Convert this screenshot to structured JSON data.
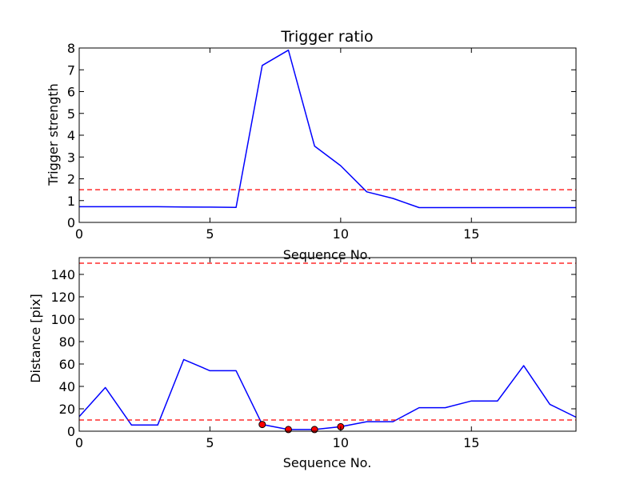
{
  "chart_data": [
    {
      "type": "line",
      "title": "Trigger ratio",
      "xlabel": "Sequence No.",
      "ylabel": "Trigger strength",
      "xlim": [
        0,
        19
      ],
      "ylim": [
        0,
        8
      ],
      "xticks": [
        0,
        5,
        10,
        15
      ],
      "yticks": [
        0,
        1,
        2,
        3,
        4,
        5,
        6,
        7,
        8
      ],
      "grid": false,
      "series": [
        {
          "color": "#0000ff",
          "style": "solid",
          "x": [
            0,
            1,
            2,
            3,
            4,
            5,
            6,
            7,
            8,
            9,
            10,
            11,
            12,
            13,
            14,
            15,
            16,
            17,
            18,
            19
          ],
          "y": [
            0.72,
            0.72,
            0.72,
            0.72,
            0.71,
            0.7,
            0.69,
            7.2,
            7.9,
            3.5,
            2.6,
            1.4,
            1.1,
            0.68,
            0.68,
            0.68,
            0.68,
            0.68,
            0.68,
            0.68
          ]
        }
      ],
      "hlines": [
        {
          "y": 1.5,
          "color": "#ff0000",
          "style": "dashed"
        }
      ],
      "markers": []
    },
    {
      "type": "line",
      "title": "",
      "xlabel": "Sequence No.",
      "ylabel": "Distance [pix]",
      "xlim": [
        0,
        19
      ],
      "ylim": [
        0,
        155
      ],
      "xticks": [
        0,
        5,
        10,
        15
      ],
      "yticks": [
        0,
        20,
        40,
        60,
        80,
        100,
        120,
        140
      ],
      "grid": false,
      "series": [
        {
          "color": "#0000ff",
          "style": "solid",
          "x": [
            0,
            1,
            2,
            3,
            4,
            5,
            6,
            7,
            8,
            9,
            10,
            11,
            12,
            13,
            14,
            15,
            16,
            17,
            18,
            19
          ],
          "y": [
            13,
            39,
            5.5,
            5.5,
            64,
            54,
            54,
            6,
            1.5,
            1.5,
            4,
            8.5,
            8.5,
            21,
            21,
            27,
            27,
            58.5,
            24,
            12.5
          ]
        }
      ],
      "hlines": [
        {
          "y": 10,
          "color": "#ff0000",
          "style": "dashed"
        },
        {
          "y": 150,
          "color": "#ff0000",
          "style": "dashed"
        }
      ],
      "markers": [
        {
          "x": 7,
          "y": 6,
          "color": "#ff0000"
        },
        {
          "x": 8,
          "y": 1.5,
          "color": "#ff0000"
        },
        {
          "x": 9,
          "y": 1.5,
          "color": "#ff0000"
        },
        {
          "x": 10,
          "y": 4,
          "color": "#ff0000"
        }
      ]
    }
  ]
}
